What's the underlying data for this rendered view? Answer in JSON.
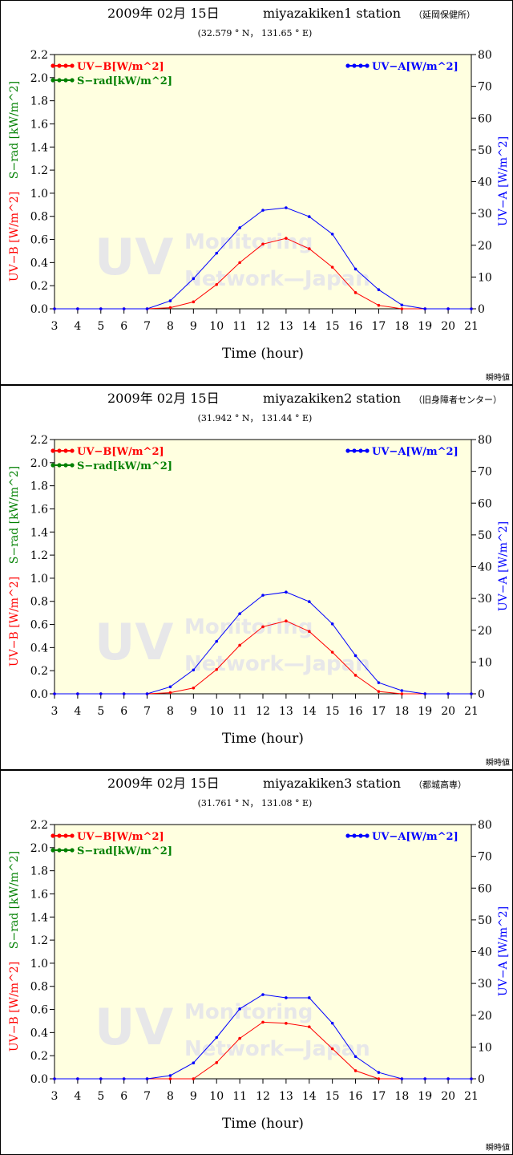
{
  "colors": {
    "uvb": "#ff0000",
    "srad": "#008000",
    "uva": "#0000ff",
    "plot_bg": "#ffffe0"
  },
  "watermark": {
    "big": "UV",
    "line1": "Monitoring",
    "line2": "Network—Japan"
  },
  "chart_data": [
    {
      "type": "line",
      "title_date": "2009年 02月 15日",
      "title_station": "miyazakiken1 station",
      "title_site": "（延岡保健所）",
      "coords": "(32.579 ° N， 131.65 ° E)",
      "xlabel": "Time (hour)",
      "ylabel_left_1": "UV−B [W/m^2]",
      "ylabel_left_2": "S−rad [kW/m^2]",
      "ylabel_right": "UV−A [W/m^2]",
      "mode_label": "瞬時値",
      "x": [
        3,
        4,
        5,
        6,
        7,
        8,
        9,
        10,
        11,
        12,
        13,
        14,
        15,
        16,
        17,
        18,
        19,
        20,
        21
      ],
      "xlim": [
        3,
        21
      ],
      "ylim_left": [
        0,
        2.2
      ],
      "ylim_right": [
        0,
        80
      ],
      "yticks_left": [
        "0.0",
        "0.2",
        "0.4",
        "0.6",
        "0.8",
        "1.0",
        "1.2",
        "1.4",
        "1.6",
        "1.8",
        "2.0",
        "2.2"
      ],
      "yticks_right": [
        "0",
        "10",
        "20",
        "30",
        "40",
        "50",
        "60",
        "70",
        "80"
      ],
      "legend": {
        "uvb": "UV−B[W/m^2]",
        "srad": "S−rad[kW/m^2]",
        "uva": "UV−A[W/m^2]"
      },
      "series": [
        {
          "name": "UV−B[W/m^2]",
          "axis": "left",
          "color": "#ff0000",
          "values": [
            0,
            0,
            0,
            0,
            0,
            0.01,
            0.06,
            0.21,
            0.4,
            0.56,
            0.61,
            0.52,
            0.36,
            0.14,
            0.03,
            0,
            0,
            0,
            0
          ]
        },
        {
          "name": "UV−A[W/m^2]",
          "axis": "right",
          "color": "#0000ff",
          "values": [
            0,
            0,
            0,
            0,
            0,
            2.5,
            9.5,
            17.5,
            25.5,
            31,
            31.8,
            29,
            23.5,
            12.5,
            6,
            1.2,
            0,
            0,
            0
          ]
        }
      ]
    },
    {
      "type": "line",
      "title_date": "2009年 02月 15日",
      "title_station": "miyazakiken2 station",
      "title_site": "（旧身障者センター）",
      "coords": "(31.942 ° N， 131.44 ° E)",
      "xlabel": "Time (hour)",
      "ylabel_left_1": "UV−B [W/m^2]",
      "ylabel_left_2": "S−rad [kW/m^2]",
      "ylabel_right": "UV−A [W/m^2]",
      "mode_label": "瞬時値",
      "x": [
        3,
        4,
        5,
        6,
        7,
        8,
        9,
        10,
        11,
        12,
        13,
        14,
        15,
        16,
        17,
        18,
        19,
        20,
        21
      ],
      "xlim": [
        3,
        21
      ],
      "ylim_left": [
        0,
        2.2
      ],
      "ylim_right": [
        0,
        80
      ],
      "yticks_left": [
        "0.0",
        "0.2",
        "0.4",
        "0.6",
        "0.8",
        "1.0",
        "1.2",
        "1.4",
        "1.6",
        "1.8",
        "2.0",
        "2.2"
      ],
      "yticks_right": [
        "0",
        "10",
        "20",
        "30",
        "40",
        "50",
        "60",
        "70",
        "80"
      ],
      "legend": {
        "uvb": "UV−B[W/m^2]",
        "srad": "S−rad[kW/m^2]",
        "uva": "UV−A[W/m^2]"
      },
      "series": [
        {
          "name": "UV−B[W/m^2]",
          "axis": "left",
          "color": "#ff0000",
          "values": [
            0,
            0,
            0,
            0,
            0,
            0.01,
            0.05,
            0.21,
            0.42,
            0.58,
            0.63,
            0.54,
            0.36,
            0.16,
            0.02,
            0,
            0,
            0,
            0
          ]
        },
        {
          "name": "UV−A[W/m^2]",
          "axis": "right",
          "color": "#0000ff",
          "values": [
            0,
            0,
            0,
            0,
            0,
            2.2,
            7.5,
            16.5,
            25.2,
            31,
            32,
            29,
            22,
            12,
            3.5,
            1,
            0,
            0,
            0
          ]
        }
      ]
    },
    {
      "type": "line",
      "title_date": "2009年 02月 15日",
      "title_station": "miyazakiken3 station",
      "title_site": "（都城高専）",
      "coords": "(31.761 ° N， 131.08 ° E)",
      "xlabel": "Time (hour)",
      "ylabel_left_1": "UV−B [W/m^2]",
      "ylabel_left_2": "S−rad [kW/m^2]",
      "ylabel_right": "UV−A [W/m^2]",
      "mode_label": "瞬時値",
      "x": [
        3,
        4,
        5,
        6,
        7,
        8,
        9,
        10,
        11,
        12,
        13,
        14,
        15,
        16,
        17,
        18,
        19,
        20,
        21
      ],
      "xlim": [
        3,
        21
      ],
      "ylim_left": [
        0,
        2.2
      ],
      "ylim_right": [
        0,
        80
      ],
      "yticks_left": [
        "0.0",
        "0.2",
        "0.4",
        "0.6",
        "0.8",
        "1.0",
        "1.2",
        "1.4",
        "1.6",
        "1.8",
        "2.0",
        "2.2"
      ],
      "yticks_right": [
        "0",
        "10",
        "20",
        "30",
        "40",
        "50",
        "60",
        "70",
        "80"
      ],
      "legend": {
        "uvb": "UV−B[W/m^2]",
        "srad": "S−rad[kW/m^2]",
        "uva": "UV−A[W/m^2]"
      },
      "series": [
        {
          "name": "UV−B[W/m^2]",
          "axis": "left",
          "color": "#ff0000",
          "values": [
            0,
            0,
            0,
            0,
            0,
            0,
            0,
            0.14,
            0.35,
            0.49,
            0.48,
            0.45,
            0.26,
            0.07,
            0,
            0,
            0,
            0,
            0
          ]
        },
        {
          "name": "UV−A[W/m^2]",
          "axis": "right",
          "color": "#0000ff",
          "values": [
            0,
            0,
            0,
            0,
            0,
            1,
            5,
            13,
            22,
            26.5,
            25.5,
            25.5,
            17.5,
            7,
            2,
            0,
            0,
            0,
            0
          ]
        }
      ]
    }
  ]
}
